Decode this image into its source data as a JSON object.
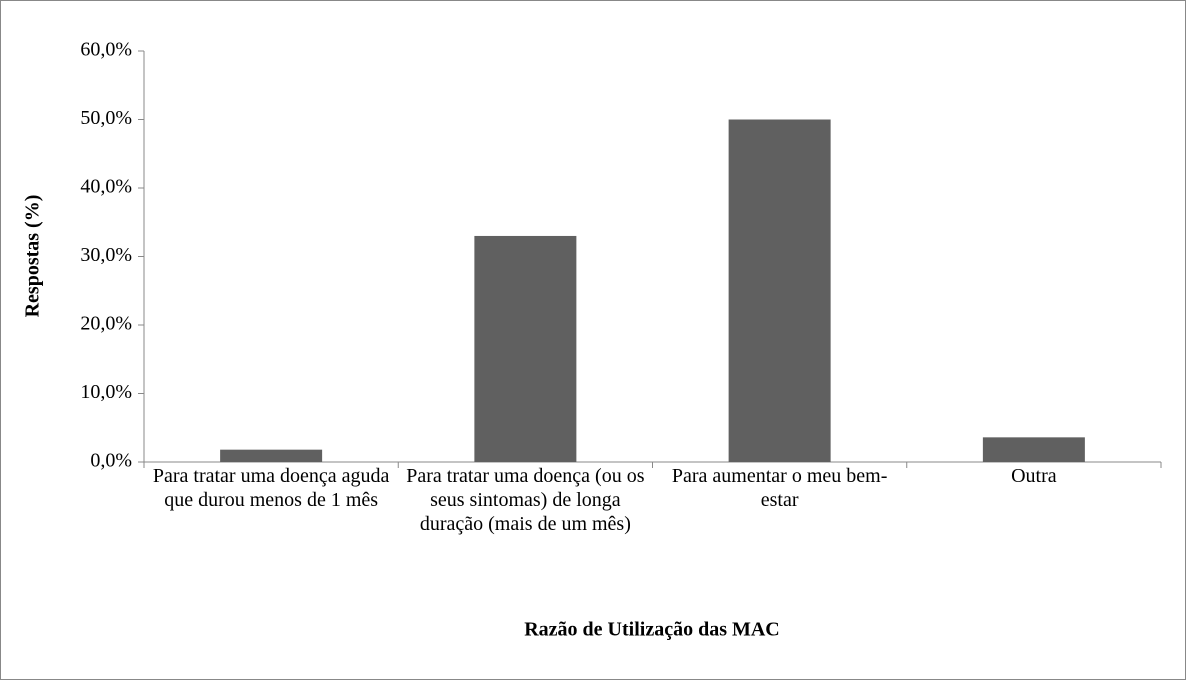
{
  "chart_data": {
    "type": "bar",
    "x_label": "Razão de Utilização das MAC",
    "y_label": "Respostas (%)",
    "categories": [
      "Para tratar uma doença aguda que durou menos de 1 mês",
      "Para tratar uma doença (ou os seus sintomas) de longa duração (mais de um mês)",
      "Para aumentar o meu bem-estar",
      "Outra"
    ],
    "values": [
      1.8,
      33.0,
      50.0,
      3.6
    ],
    "color": "#606060",
    "ylim": [
      0,
      60
    ],
    "yticks": [
      {
        "value": 0,
        "label": "0,0%"
      },
      {
        "value": 10,
        "label": "10,0%"
      },
      {
        "value": 20,
        "label": "20,0%"
      },
      {
        "value": 30,
        "label": "30,0%"
      },
      {
        "value": 40,
        "label": "40,0%"
      },
      {
        "value": 50,
        "label": "50,0%"
      },
      {
        "value": 60,
        "label": "60,0%"
      }
    ],
    "grid": false
  }
}
